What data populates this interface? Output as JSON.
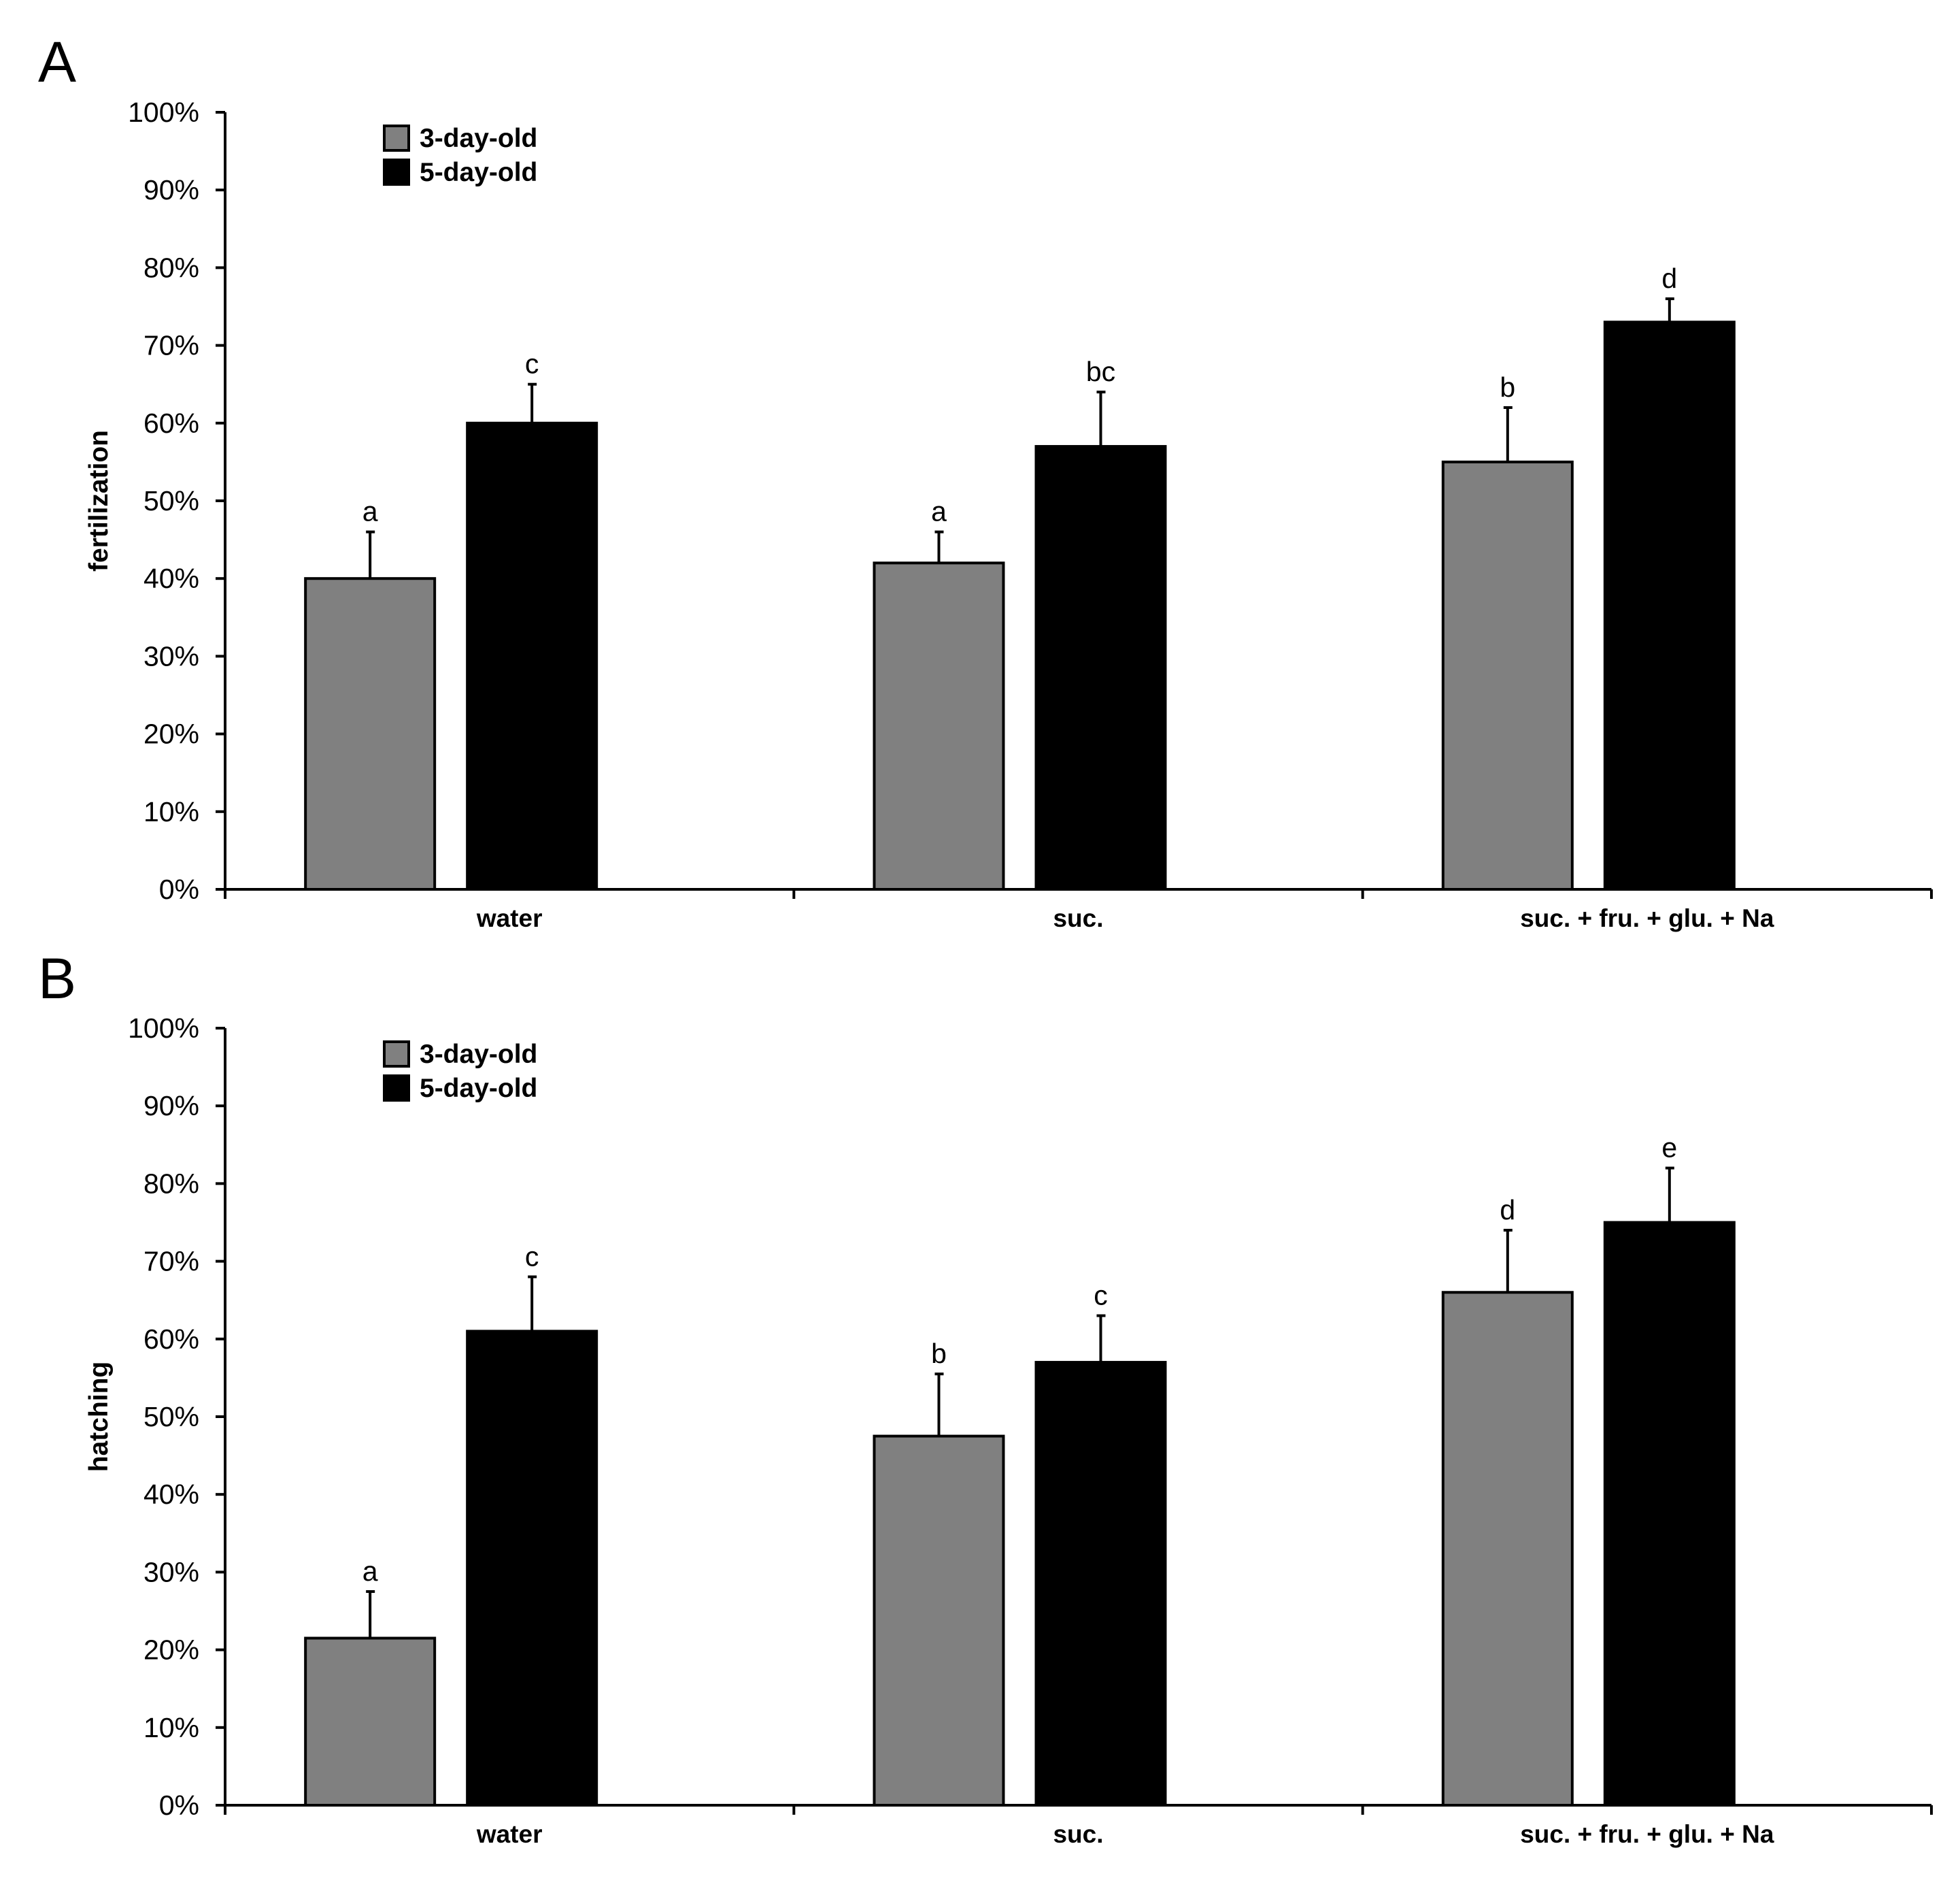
{
  "chart_data": [
    {
      "panel": "A",
      "type": "bar",
      "ylabel": "fertilization",
      "xlabel": "",
      "ylim": [
        0,
        100
      ],
      "ytick_labels": [
        "0%",
        "10%",
        "20%",
        "30%",
        "40%",
        "50%",
        "60%",
        "70%",
        "80%",
        "90%",
        "100%"
      ],
      "categories": [
        "water",
        "suc.",
        "suc. + fru. + glu. + Na"
      ],
      "legend_position": "top-left",
      "grid": false,
      "series": [
        {
          "name": "3-day-old",
          "color": "#808080",
          "values": [
            40,
            42,
            55
          ],
          "errors": [
            6,
            4,
            7
          ],
          "letters": [
            "a",
            "a",
            "b"
          ]
        },
        {
          "name": "5-day-old",
          "color": "#000000",
          "values": [
            60,
            57,
            73
          ],
          "errors": [
            5,
            7,
            3
          ],
          "letters": [
            "c",
            "bc",
            "d"
          ]
        }
      ]
    },
    {
      "panel": "B",
      "type": "bar",
      "ylabel": "hatching",
      "xlabel": "",
      "ylim": [
        0,
        100
      ],
      "ytick_labels": [
        "0%",
        "10%",
        "20%",
        "30%",
        "40%",
        "50%",
        "60%",
        "70%",
        "80%",
        "90%",
        "100%"
      ],
      "categories": [
        "water",
        "suc.",
        "suc. + fru. + glu. + Na"
      ],
      "legend_position": "top-left",
      "grid": false,
      "series": [
        {
          "name": "3-day-old",
          "color": "#808080",
          "values": [
            21.5,
            47.5,
            66
          ],
          "errors": [
            6,
            8,
            8
          ],
          "letters": [
            "a",
            "b",
            "d"
          ]
        },
        {
          "name": "5-day-old",
          "color": "#000000",
          "values": [
            61,
            57,
            75
          ],
          "errors": [
            7,
            6,
            7
          ],
          "letters": [
            "c",
            "c",
            "e"
          ]
        }
      ]
    }
  ]
}
